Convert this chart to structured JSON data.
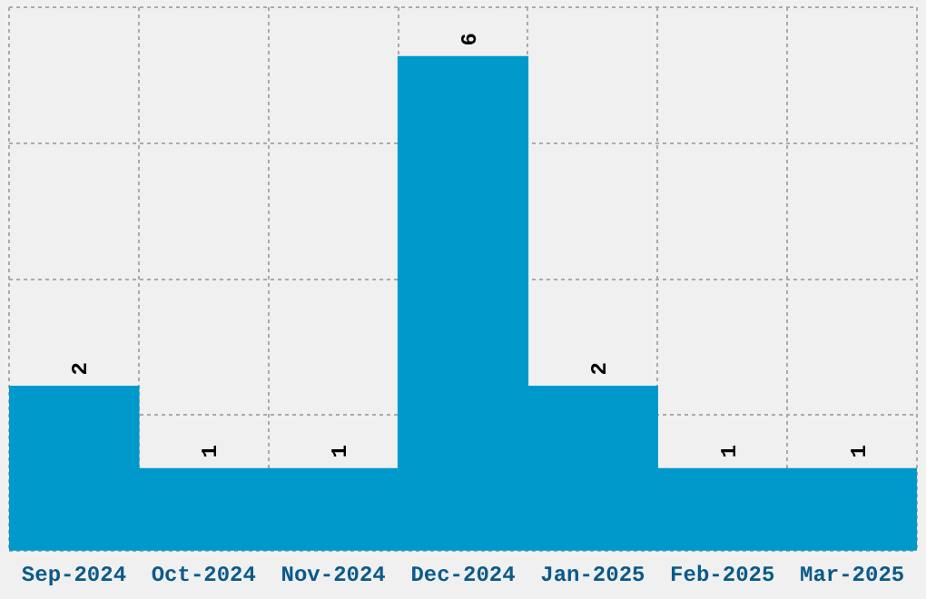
{
  "chart_data": {
    "type": "bar",
    "categories": [
      "Sep-2024",
      "Oct-2024",
      "Nov-2024",
      "Dec-2024",
      "Jan-2025",
      "Feb-2025",
      "Mar-2025"
    ],
    "values": [
      2,
      1,
      1,
      6,
      2,
      1,
      1
    ],
    "color": "#0099cc",
    "data_labels": true,
    "ylim": [
      0,
      6.6
    ],
    "yticks": [
      {
        "value": 0,
        "label": null
      },
      {
        "value": 1.65,
        "label": null
      },
      {
        "value": 3.3,
        "label": null
      },
      {
        "value": 4.95,
        "label": null
      },
      {
        "value": 6.6,
        "label": null
      }
    ],
    "grid": true,
    "tick_labels": "x"
  }
}
